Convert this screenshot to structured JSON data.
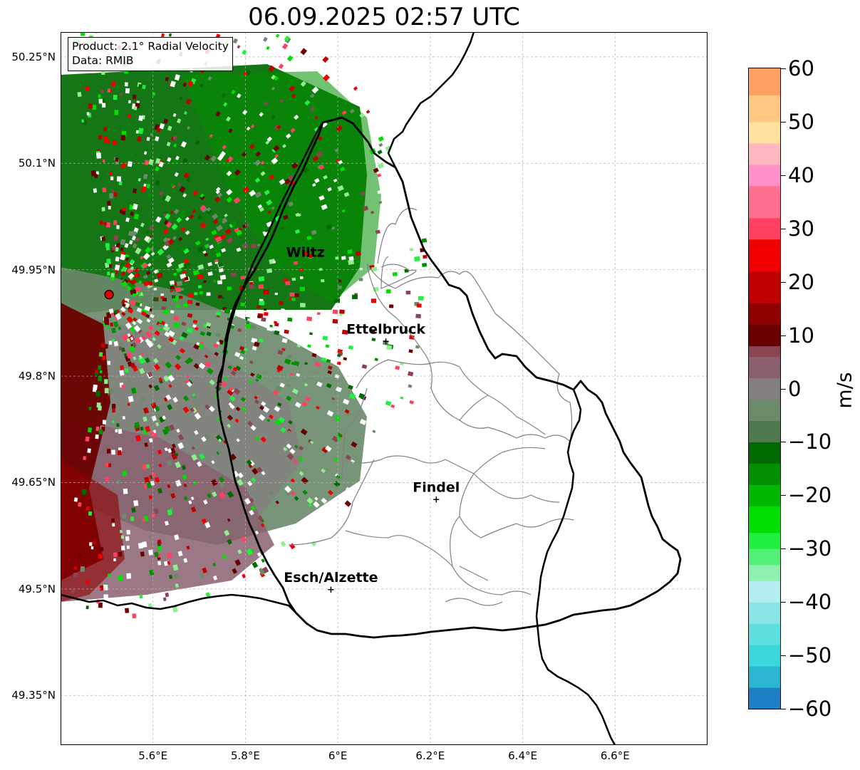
{
  "title": "06.09.2025 02:57 UTC",
  "info_box": {
    "product": "Product: 2.1° Radial Velocity",
    "data": "Data: RMIB"
  },
  "map": {
    "lon_range": [
      5.4,
      6.8
    ],
    "lat_range": [
      49.28,
      50.285
    ],
    "radar_site": {
      "lon": 5.505,
      "lat": 49.915,
      "color": "#e00000"
    },
    "latitude_ticks": [
      {
        "lat": 50.25,
        "label": "50.25°N"
      },
      {
        "lat": 50.1,
        "label": "50.1°N"
      },
      {
        "lat": 49.95,
        "label": "49.95°N"
      },
      {
        "lat": 49.8,
        "label": "49.8°N"
      },
      {
        "lat": 49.65,
        "label": "49.65°N"
      },
      {
        "lat": 49.5,
        "label": "49.5°N"
      },
      {
        "lat": 49.35,
        "label": "49.35°N"
      }
    ],
    "longitude_ticks": [
      {
        "lon": 5.6,
        "label": "5.6°E"
      },
      {
        "lon": 5.8,
        "label": "5.8°E"
      },
      {
        "lon": 6.0,
        "label": "6°E"
      },
      {
        "lon": 6.2,
        "label": "6.2°E"
      },
      {
        "lon": 6.4,
        "label": "6.4°E"
      },
      {
        "lon": 6.6,
        "label": "6.6°E"
      }
    ],
    "cities": [
      {
        "name": "Wiltz",
        "lon": 5.93,
        "lat": 49.968,
        "marker": false
      },
      {
        "name": "Ettelbruck",
        "lon": 6.104,
        "lat": 49.85,
        "marker": true
      },
      {
        "name": "Findel",
        "lon": 6.213,
        "lat": 49.627,
        "marker": true
      },
      {
        "name": "Esch/Alzette",
        "lon": 5.985,
        "lat": 49.5,
        "marker": true
      }
    ]
  },
  "colorbar": {
    "unit": "m/s",
    "ticks": [
      {
        "value": 60,
        "label": "60"
      },
      {
        "value": 50,
        "label": "50"
      },
      {
        "value": 40,
        "label": "40"
      },
      {
        "value": 30,
        "label": "30"
      },
      {
        "value": 20,
        "label": "20"
      },
      {
        "value": 10,
        "label": "10"
      },
      {
        "value": 0,
        "label": "0"
      },
      {
        "value": -10,
        "label": "−10"
      },
      {
        "value": -20,
        "label": "−20"
      },
      {
        "value": -30,
        "label": "−30"
      },
      {
        "value": -40,
        "label": "−40"
      },
      {
        "value": -50,
        "label": "−50"
      },
      {
        "value": -60,
        "label": "−60"
      }
    ],
    "range": [
      -60,
      60
    ],
    "color_stops": [
      {
        "from": -60,
        "to": -56,
        "color": "#1f7fc4"
      },
      {
        "from": -56,
        "to": -52,
        "color": "#2ab5d0"
      },
      {
        "from": -52,
        "to": -48,
        "color": "#3ad8dc"
      },
      {
        "from": -48,
        "to": -44,
        "color": "#5ee0e0"
      },
      {
        "from": -44,
        "to": -40,
        "color": "#8ae6e6"
      },
      {
        "from": -40,
        "to": -36,
        "color": "#b4eef0"
      },
      {
        "from": -36,
        "to": -33,
        "color": "#8ff0b0"
      },
      {
        "from": -33,
        "to": -30,
        "color": "#55f07a"
      },
      {
        "from": -30,
        "to": -27,
        "color": "#22f040"
      },
      {
        "from": -27,
        "to": -22,
        "color": "#00e000"
      },
      {
        "from": -22,
        "to": -18,
        "color": "#00b800"
      },
      {
        "from": -18,
        "to": -14,
        "color": "#009000"
      },
      {
        "from": -14,
        "to": -10,
        "color": "#006a00"
      },
      {
        "from": -10,
        "to": -6,
        "color": "#4f7a4f"
      },
      {
        "from": -6,
        "to": -2,
        "color": "#6a8a6a"
      },
      {
        "from": -2,
        "to": 2,
        "color": "#848080"
      },
      {
        "from": 2,
        "to": 6,
        "color": "#8a6070"
      },
      {
        "from": 6,
        "to": 8,
        "color": "#8a4550"
      },
      {
        "from": 8,
        "to": 12,
        "color": "#6a0000"
      },
      {
        "from": 12,
        "to": 16,
        "color": "#900000"
      },
      {
        "from": 16,
        "to": 22,
        "color": "#c00000"
      },
      {
        "from": 22,
        "to": 28,
        "color": "#f00000"
      },
      {
        "from": 28,
        "to": 32,
        "color": "#ff4060"
      },
      {
        "from": 32,
        "to": 38,
        "color": "#ff7090"
      },
      {
        "from": 38,
        "to": 42,
        "color": "#ff90c8"
      },
      {
        "from": 42,
        "to": 46,
        "color": "#ffb8c0"
      },
      {
        "from": 46,
        "to": 50,
        "color": "#ffe2a0"
      },
      {
        "from": 50,
        "to": 55,
        "color": "#ffc884"
      },
      {
        "from": 55,
        "to": 60,
        "color": "#ffa060"
      }
    ]
  }
}
